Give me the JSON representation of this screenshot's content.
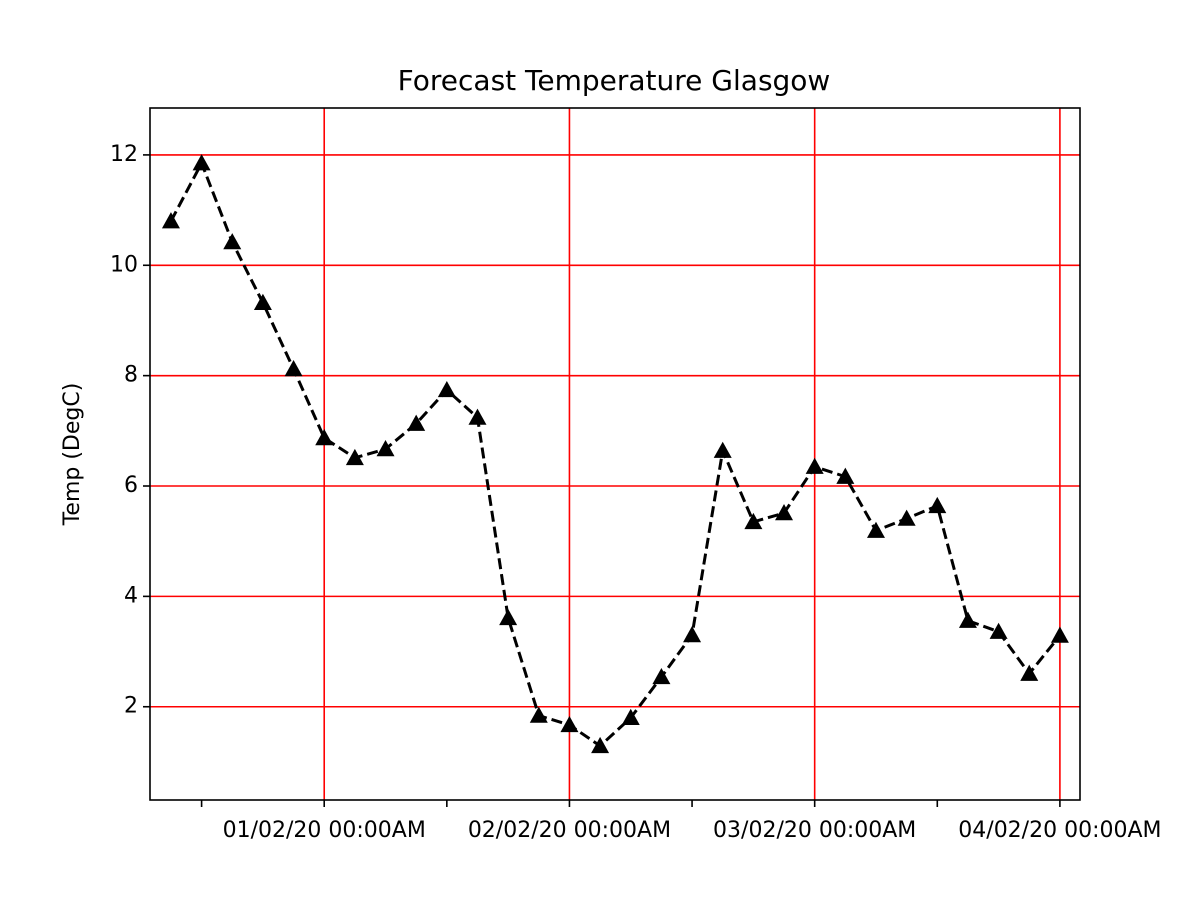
{
  "chart_data": {
    "type": "line",
    "title": "Forecast Temperature Glasgow",
    "y_label": "Temp (DegC)",
    "x": [
      "2020-01-31T09:00",
      "2020-01-31T12:00",
      "2020-01-31T15:00",
      "2020-01-31T18:00",
      "2020-01-31T21:00",
      "2020-02-01T00:00",
      "2020-02-01T03:00",
      "2020-02-01T06:00",
      "2020-02-01T09:00",
      "2020-02-01T12:00",
      "2020-02-01T15:00",
      "2020-02-01T18:00",
      "2020-02-01T21:00",
      "2020-02-02T00:00",
      "2020-02-02T03:00",
      "2020-02-02T06:00",
      "2020-02-02T09:00",
      "2020-02-02T12:00",
      "2020-02-02T15:00",
      "2020-02-02T18:00",
      "2020-02-02T21:00",
      "2020-02-03T00:00",
      "2020-02-03T03:00",
      "2020-02-03T06:00",
      "2020-02-03T09:00",
      "2020-02-03T12:00",
      "2020-02-03T15:00",
      "2020-02-03T18:00",
      "2020-02-03T21:00",
      "2020-02-04T00:00"
    ],
    "values": [
      10.8,
      11.85,
      10.42,
      9.32,
      8.12,
      6.87,
      6.51,
      6.67,
      7.13,
      7.74,
      7.24,
      3.61,
      1.84,
      1.67,
      1.29,
      1.8,
      2.54,
      3.3,
      6.64,
      5.35,
      5.51,
      6.35,
      6.17,
      5.19,
      5.41,
      5.64,
      3.56,
      3.36,
      2.6,
      3.29
    ],
    "color": "#000000",
    "line_style": "dashed",
    "marker": "triangle",
    "xlim": [
      "2020-01-31T06:57",
      "2020-02-04T01:58"
    ],
    "xticks": [
      {
        "value": "2020-02-01T00:00",
        "label": "01/02/20 00:00AM"
      },
      {
        "value": "2020-02-02T00:00",
        "label": "02/02/20 00:00AM"
      },
      {
        "value": "2020-02-03T00:00",
        "label": "03/02/20 00:00AM"
      },
      {
        "value": "2020-02-04T00:00",
        "label": "04/02/20 00:00AM"
      }
    ],
    "xticks_minor": [
      "2020-01-31T12:00",
      "2020-02-01T12:00",
      "2020-02-02T12:00",
      "2020-02-03T12:00"
    ],
    "ylim": [
      0.31,
      12.85
    ],
    "yticks": [
      2,
      4,
      6,
      8,
      10,
      12
    ],
    "grid": true,
    "grid_color": "#ff0000"
  }
}
